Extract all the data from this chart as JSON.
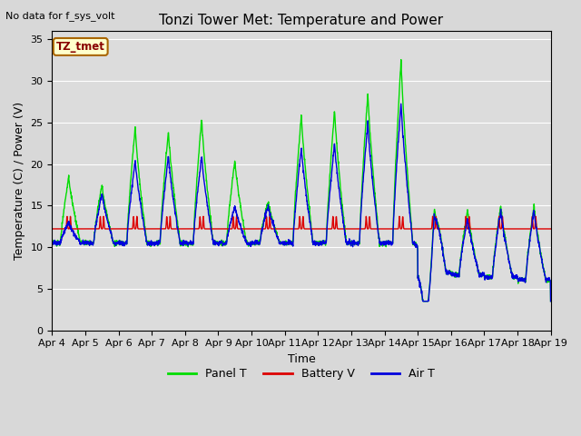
{
  "title": "Tonzi Tower Met: Temperature and Power",
  "no_data_text": "No data for f_sys_volt",
  "xlabel": "Time",
  "ylabel": "Temperature (C) / Power (V)",
  "legend_label": "TZ_tmet",
  "series_labels": [
    "Panel T",
    "Battery V",
    "Air T"
  ],
  "series_colors": [
    "#00dd00",
    "#dd0000",
    "#0000dd"
  ],
  "ylim": [
    0,
    36
  ],
  "yticks": [
    0,
    5,
    10,
    15,
    20,
    25,
    30,
    35
  ],
  "xtick_labels": [
    "Apr 4",
    "Apr 5",
    "Apr 6",
    "Apr 7",
    "Apr 8",
    "Apr 9",
    "Apr 10",
    "Apr 11",
    "Apr 12",
    "Apr 13",
    "Apr 14",
    "Apr 15",
    "Apr 16",
    "Apr 17",
    "Apr 18",
    "Apr 19"
  ],
  "fig_width": 6.4,
  "fig_height": 4.8,
  "dpi": 100,
  "background_color": "#d8d8d8",
  "plot_bg_color": "#dcdcdc",
  "title_fontsize": 11,
  "axis_fontsize": 9,
  "tick_fontsize": 8,
  "legend_box_facecolor": "#ffffcc",
  "legend_box_edgecolor": "#aa6600"
}
